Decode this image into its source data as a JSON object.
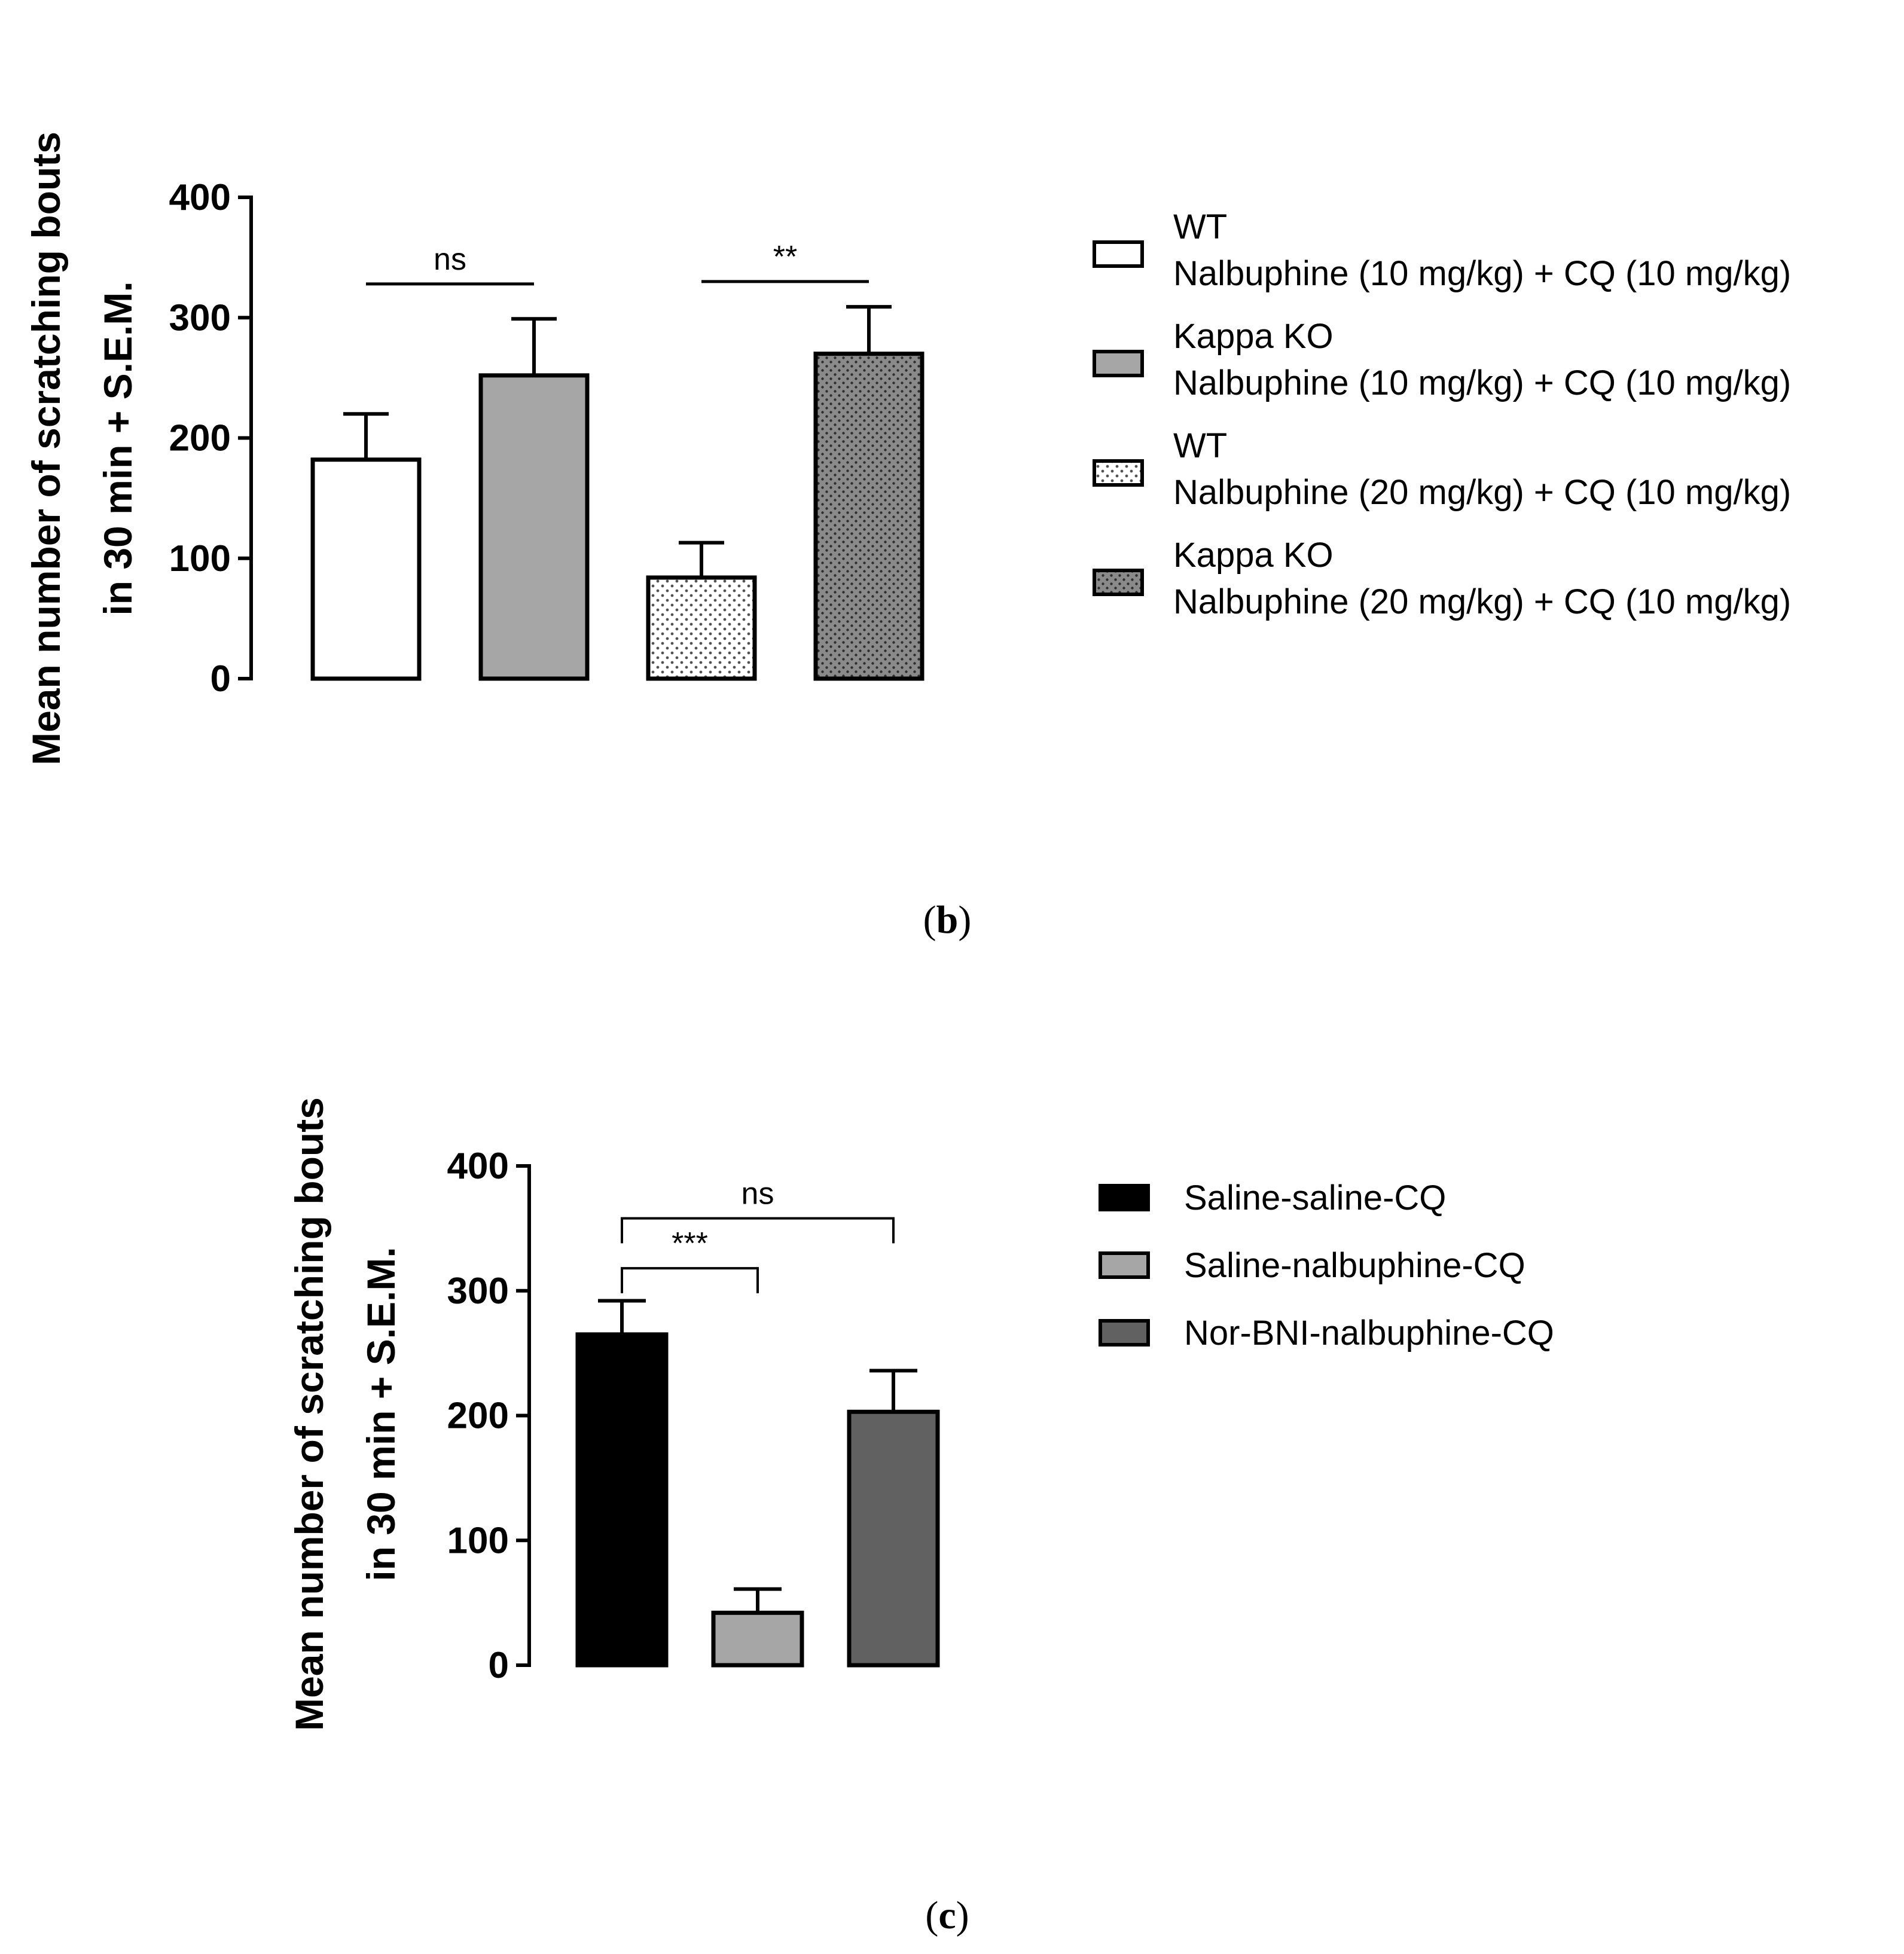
{
  "chart_data": [
    {
      "type": "bar",
      "panel": "b",
      "caption_label": "b",
      "ylabel_lines": [
        "Mean number of scratching bouts",
        "in 30 min + S.E.M."
      ],
      "yticks": [
        0,
        100,
        200,
        300,
        400
      ],
      "ylim": [
        0,
        400
      ],
      "categories": [
        "WT Nalbuphine (10 mg/kg) + CQ (10 mg/kg)",
        "Kappa KO Nalbuphine (10 mg/kg) + CQ (10 mg/kg)",
        "WT Nalbuphine (20 mg/kg) + CQ (10 mg/kg)",
        "Kappa KO Nalbuphine (20 mg/kg) + CQ (10 mg/kg)"
      ],
      "values": [
        182,
        252,
        84,
        270
      ],
      "errors": [
        38,
        47,
        29,
        39
      ],
      "fills": [
        "#ffffff",
        "#a6a6a6",
        "dots-light",
        "dots-dark"
      ],
      "legend": [
        {
          "line1": "WT",
          "line2": "Nalbuphine (10 mg/kg) + CQ (10 mg/kg)",
          "fill": "#ffffff"
        },
        {
          "line1": "Kappa KO",
          "line2": "Nalbuphine (10 mg/kg) + CQ (10 mg/kg)",
          "fill": "#a6a6a6"
        },
        {
          "line1": "WT",
          "line2": "Nalbuphine (20 mg/kg) + CQ (10 mg/kg)",
          "fill": "dots-light"
        },
        {
          "line1": "Kappa KO",
          "line2": "Nalbuphine (20 mg/kg) + CQ (10 mg/kg)",
          "fill": "dots-dark"
        }
      ],
      "significance": [
        {
          "from": 0,
          "to": 1,
          "y": 328,
          "label": "ns",
          "style": "line"
        },
        {
          "from": 2,
          "to": 3,
          "y": 330,
          "label": "**",
          "style": "line"
        }
      ]
    },
    {
      "type": "bar",
      "panel": "c",
      "caption_label": "c",
      "ylabel_lines": [
        "Mean number of scratching bouts",
        "in 30 min + S.E.M."
      ],
      "yticks": [
        0,
        100,
        200,
        300,
        400
      ],
      "ylim": [
        0,
        400
      ],
      "categories": [
        "Saline-saline-CQ",
        "Saline-nalbuphine-CQ",
        "Nor-BNI-nalbuphine-CQ"
      ],
      "values": [
        265,
        42,
        203
      ],
      "errors": [
        27,
        19,
        33
      ],
      "fills": [
        "#000000",
        "#a6a6a6",
        "#616161"
      ],
      "legend": [
        {
          "line1": "Saline-saline-CQ",
          "fill": "#000000"
        },
        {
          "line1": "Saline-nalbuphine-CQ",
          "fill": "#a6a6a6"
        },
        {
          "line1": "Nor-BNI-nalbuphine-CQ",
          "fill": "#616161"
        }
      ],
      "significance": [
        {
          "from": 0,
          "to": 1,
          "y": 318,
          "drop": 20,
          "label": "***",
          "style": "bracket"
        },
        {
          "from": 0,
          "to": 2,
          "y": 358,
          "drop": 20,
          "label": "ns",
          "style": "bracket"
        }
      ]
    }
  ]
}
